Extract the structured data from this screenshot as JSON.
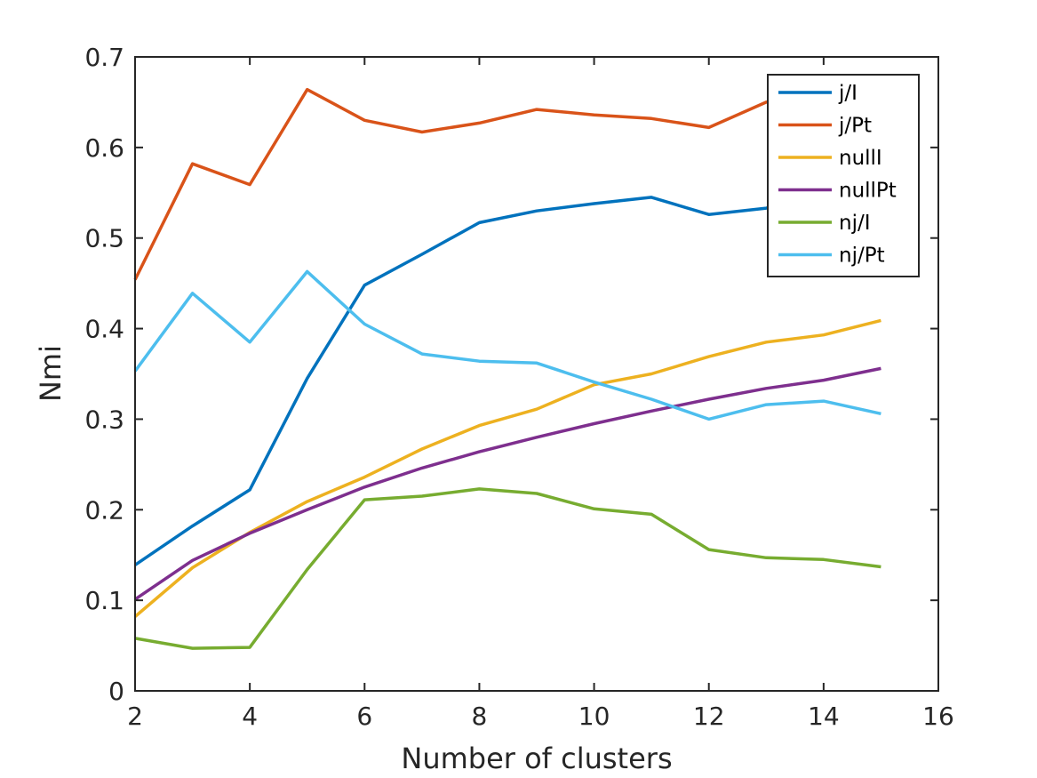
{
  "chart_data": {
    "type": "line",
    "title": "",
    "xlabel": "Number of clusters",
    "ylabel": "Nmi",
    "xlim": [
      2,
      16
    ],
    "ylim": [
      0,
      0.7
    ],
    "xticks": [
      "2",
      "4",
      "6",
      "8",
      "10",
      "12",
      "14",
      "16"
    ],
    "yticks": [
      "0",
      "0.1",
      "0.2",
      "0.3",
      "0.4",
      "0.5",
      "0.6",
      "0.7"
    ],
    "grid": false,
    "legend_position": "top-right",
    "x": [
      2,
      3,
      4,
      5,
      6,
      7,
      8,
      9,
      10,
      11,
      12,
      13,
      14,
      15
    ],
    "series": [
      {
        "name": "j/I",
        "color": "#0072BD",
        "values": [
          0.139,
          0.182,
          0.222,
          0.345,
          0.448,
          0.482,
          0.517,
          0.53,
          0.538,
          0.545,
          0.526,
          0.533,
          0.548,
          0.557
        ]
      },
      {
        "name": "j/Pt",
        "color": "#D95319",
        "values": [
          0.454,
          0.582,
          0.559,
          0.664,
          0.63,
          0.617,
          0.627,
          0.642,
          0.636,
          0.632,
          0.622,
          0.65,
          0.655,
          0.66
        ]
      },
      {
        "name": "nullI",
        "color": "#EDB120",
        "values": [
          0.082,
          0.136,
          0.175,
          0.209,
          0.236,
          0.267,
          0.293,
          0.311,
          0.338,
          0.35,
          0.369,
          0.385,
          0.393,
          0.409
        ]
      },
      {
        "name": "nullPt",
        "color": "#7E2F8E",
        "values": [
          0.101,
          0.144,
          0.174,
          0.2,
          0.225,
          0.246,
          0.264,
          0.28,
          0.295,
          0.309,
          0.322,
          0.334,
          0.343,
          0.356
        ]
      },
      {
        "name": "nj/I",
        "color": "#77AC30",
        "values": [
          0.058,
          0.047,
          0.048,
          0.134,
          0.211,
          0.215,
          0.223,
          0.218,
          0.201,
          0.195,
          0.156,
          0.147,
          0.145,
          0.137
        ]
      },
      {
        "name": "nj/Pt",
        "color": "#4DBEEE",
        "values": [
          0.353,
          0.439,
          0.385,
          0.463,
          0.405,
          0.372,
          0.364,
          0.362,
          0.341,
          0.322,
          0.3,
          0.316,
          0.32,
          0.306
        ]
      }
    ]
  }
}
